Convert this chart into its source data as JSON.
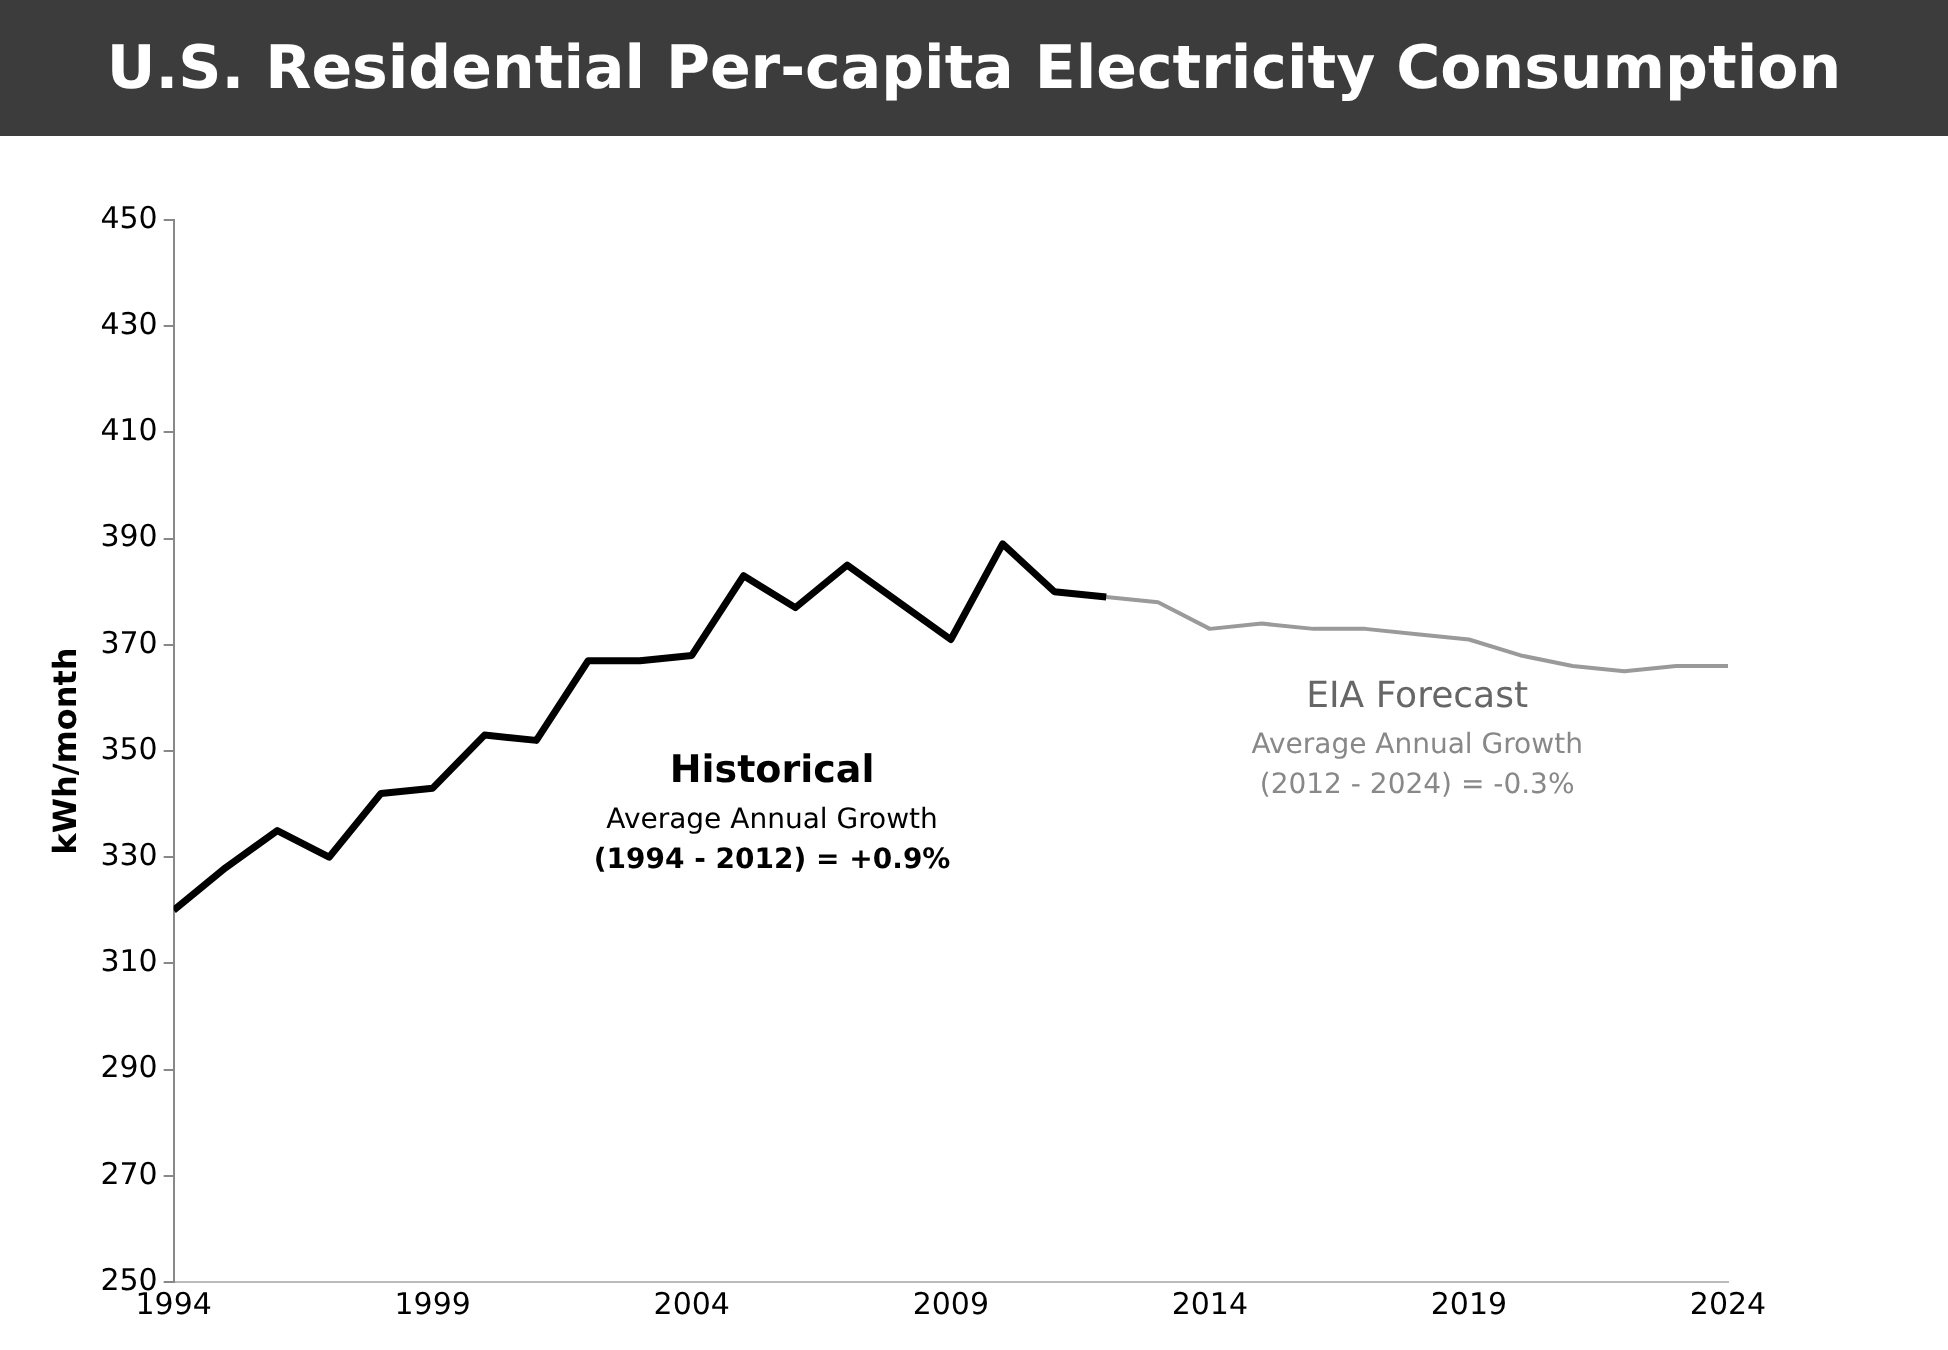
{
  "chart_data": {
    "type": "line",
    "title": "U.S. Residential Per-capita Electricity Consumption",
    "ylabel": "kWh/month",
    "xlim": [
      1994,
      2024
    ],
    "xticks": [
      1994,
      1999,
      2004,
      2009,
      2014,
      2019,
      2024
    ],
    "ylim": [
      250,
      450
    ],
    "yticks": [
      250,
      270,
      290,
      310,
      330,
      350,
      370,
      390,
      410,
      430,
      450
    ],
    "grid": false,
    "legend": false,
    "marker": "none",
    "series": [
      {
        "name": "Historical",
        "color": "#000000",
        "x": [
          1994,
          1995,
          1996,
          1997,
          1998,
          1999,
          2000,
          2001,
          2002,
          2003,
          2004,
          2005,
          2006,
          2007,
          2008,
          2009,
          2010,
          2011,
          2012
        ],
        "values": [
          320,
          328,
          335,
          330,
          342,
          343,
          353,
          352,
          367,
          367,
          368,
          383,
          377,
          385,
          378,
          371,
          389,
          380,
          379
        ]
      },
      {
        "name": "EIA Forecast",
        "color": "#9a9a9a",
        "x": [
          2012,
          2013,
          2014,
          2015,
          2016,
          2017,
          2018,
          2019,
          2020,
          2021,
          2022,
          2023,
          2024
        ],
        "values": [
          379,
          378,
          373,
          374,
          373,
          373,
          372,
          371,
          368,
          366,
          365,
          366,
          366
        ]
      }
    ],
    "annotations": [
      "Average Annual Growth",
      "(1994 - 2012) = +0.9%",
      "Average Annual Growth",
      "(2012 - 2024) = -0.3%"
    ]
  }
}
